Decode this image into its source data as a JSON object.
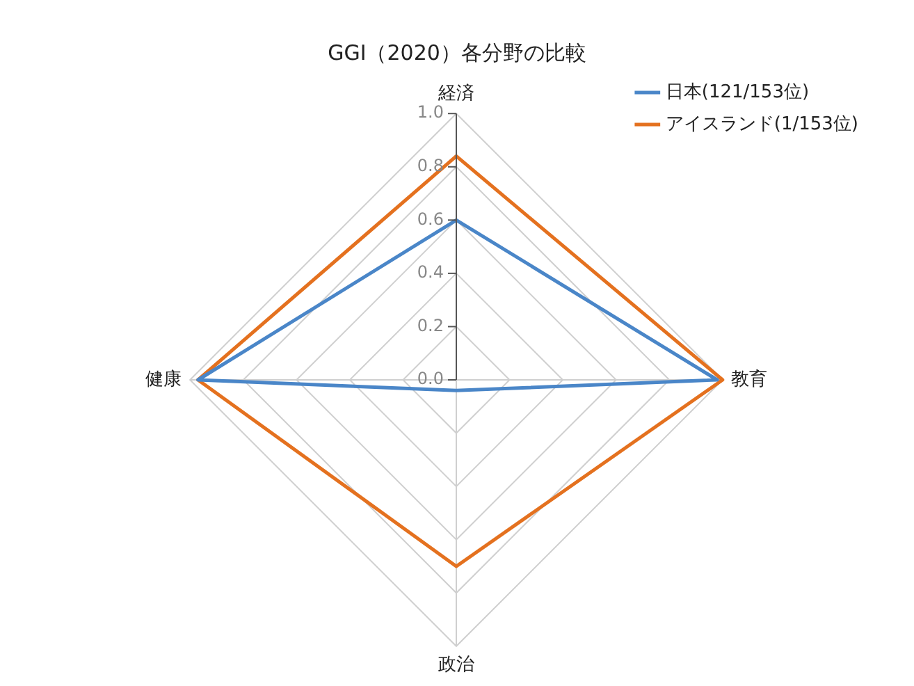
{
  "chart_data": {
    "type": "radar",
    "title": "GGI（2020）各分野の比較",
    "categories": [
      "経済",
      "教育",
      "政治",
      "健康"
    ],
    "series": [
      {
        "name": "日本(121/153位)",
        "color": "#4a86c8",
        "values": [
          0.6,
          0.98,
          0.04,
          0.97
        ]
      },
      {
        "name": "アイスランド(1/153位)",
        "color": "#e4711f",
        "values": [
          0.84,
          1.0,
          0.7,
          0.97
        ]
      }
    ],
    "ylim": [
      0,
      1
    ],
    "yticks": [
      {
        "value": 0,
        "label": "0.0"
      },
      {
        "value": 0.2,
        "label": "0.2"
      },
      {
        "value": 0.4,
        "label": "0.4"
      },
      {
        "value": 0.6,
        "label": "0.6"
      },
      {
        "value": 0.8,
        "label": "0.8"
      },
      {
        "value": 1,
        "label": "1.0"
      }
    ],
    "grid": true,
    "legend": "top right",
    "marker": "none",
    "line_style": "solid"
  }
}
